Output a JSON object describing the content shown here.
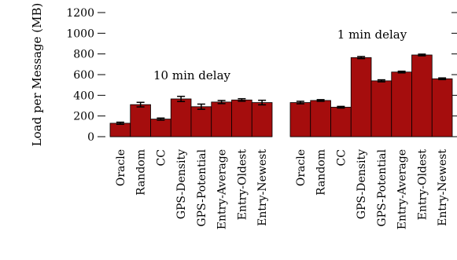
{
  "chart_data": {
    "type": "bar",
    "ylabel": "Load per Message (MB)",
    "ylim": [
      0,
      1200
    ],
    "yticks": [
      0,
      200,
      400,
      600,
      800,
      1000,
      1200
    ],
    "bar_color": "#a50d0d",
    "grid": false,
    "panels": [
      {
        "annotation": "10 min delay",
        "categories": [
          "Oracle",
          "Random",
          "CC",
          "GPS-Density",
          "GPS-Potential",
          "Entry-Average",
          "Entry-Oldest",
          "Entry-Newest"
        ],
        "values": [
          130,
          310,
          170,
          365,
          290,
          335,
          355,
          330
        ],
        "errors": [
          10,
          22,
          10,
          25,
          25,
          15,
          12,
          22
        ]
      },
      {
        "annotation": "1 min delay",
        "categories": [
          "Oracle",
          "Random",
          "CC",
          "GPS-Density",
          "GPS-Potential",
          "Entry-Average",
          "Entry-Oldest",
          "Entry-Newest"
        ],
        "values": [
          330,
          350,
          285,
          765,
          540,
          625,
          790,
          560
        ],
        "errors": [
          12,
          8,
          8,
          10,
          10,
          8,
          8,
          8
        ]
      }
    ]
  }
}
